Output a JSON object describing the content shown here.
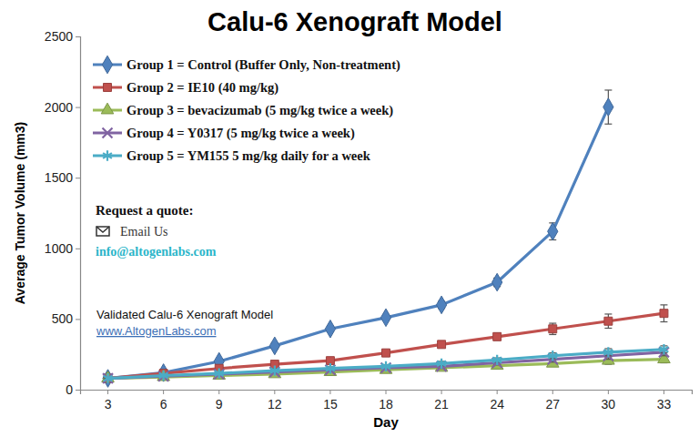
{
  "chart_data": {
    "type": "line",
    "title": "Calu-6 Xenograft Model",
    "x_label": "Day",
    "y_label": "Average Tumor Volume (mm3)",
    "categories": [
      "3",
      "6",
      "9",
      "12",
      "15",
      "18",
      "21",
      "24",
      "27",
      "30",
      "33"
    ],
    "ylim": [
      0,
      2500
    ],
    "yticks": [
      0,
      500,
      1000,
      1500,
      2000,
      2500
    ],
    "grid": false,
    "legend": "upper left",
    "series": [
      {
        "name": "Group 1 = Control (Buffer Only, Non-treatment)",
        "color": "#4f81bd",
        "marker": "diamond",
        "values": [
          80,
          120,
          200,
          310,
          430,
          510,
          600,
          760,
          1120,
          2000,
          null
        ],
        "errors": [
          10,
          12,
          15,
          20,
          20,
          20,
          25,
          30,
          60,
          120,
          null
        ]
      },
      {
        "name": "Group 2 = IE10 (40 mg/kg)",
        "color": "#c0504d",
        "marker": "square",
        "values": [
          80,
          115,
          150,
          180,
          205,
          260,
          320,
          375,
          430,
          485,
          540
        ],
        "errors": [
          5,
          8,
          10,
          15,
          15,
          20,
          20,
          25,
          40,
          50,
          60
        ]
      },
      {
        "name": "Group 3 = bevacizumab (5 mg/kg twice a week)",
        "color": "#9bbb59",
        "marker": "triangle",
        "values": [
          80,
          90,
          100,
          110,
          125,
          140,
          155,
          170,
          185,
          205,
          215
        ],
        "errors": [
          5,
          5,
          8,
          10,
          10,
          10,
          15,
          15,
          20,
          25,
          25
        ]
      },
      {
        "name": "Group 4 = Y0317 (5 mg/kg twice a week)",
        "color": "#8064a2",
        "marker": "times",
        "values": [
          80,
          95,
          110,
          125,
          140,
          155,
          165,
          190,
          215,
          240,
          265
        ],
        "errors": [
          5,
          5,
          8,
          10,
          10,
          10,
          15,
          15,
          20,
          25,
          25
        ]
      },
      {
        "name": "Group 5 = YM155 5 mg/kg daily for a week",
        "color": "#4bacc6",
        "marker": "asterisk",
        "values": [
          80,
          100,
          115,
          135,
          150,
          165,
          185,
          210,
          240,
          265,
          285
        ],
        "errors": [
          5,
          5,
          8,
          10,
          10,
          10,
          15,
          15,
          20,
          25,
          25
        ]
      }
    ],
    "annotations": [
      "Request a quote:",
      "Email Us",
      "info@altogenlabs.com",
      "Validated Calu-6 Xenograft Model",
      "www.AltogenLabs.com"
    ]
  }
}
